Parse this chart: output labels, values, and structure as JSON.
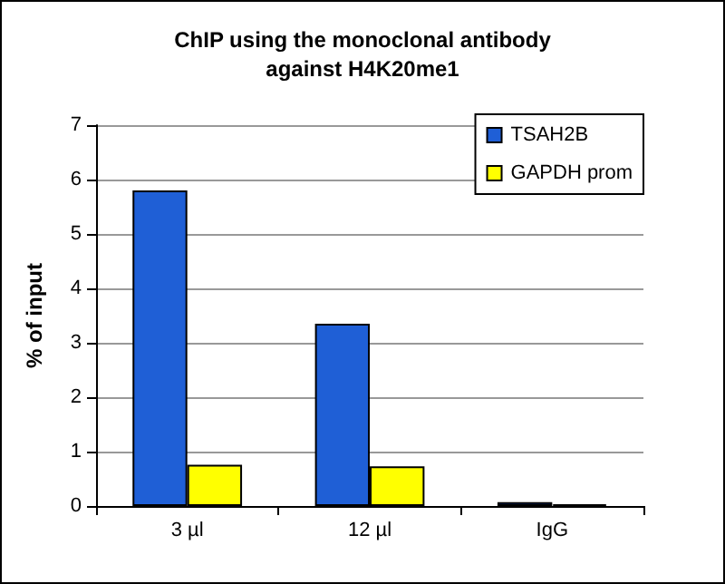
{
  "chart_data": {
    "type": "bar",
    "title": "ChIP using the monoclonal antibody\nagainst H4K20me1",
    "ylabel": "% of input",
    "categories": [
      "3 µl",
      "12 µl",
      "IgG"
    ],
    "series": [
      {
        "name": "TSAH2B",
        "color": "#1f5fd6",
        "values": [
          5.8,
          3.35,
          0.07
        ]
      },
      {
        "name": "GAPDH prom",
        "color": "#ffff00",
        "values": [
          0.76,
          0.73,
          0.03
        ]
      }
    ],
    "ylim": [
      0,
      7
    ],
    "yticks": [
      0,
      1,
      2,
      3,
      4,
      5,
      6,
      7
    ],
    "grid": "y",
    "legend": "top right"
  }
}
